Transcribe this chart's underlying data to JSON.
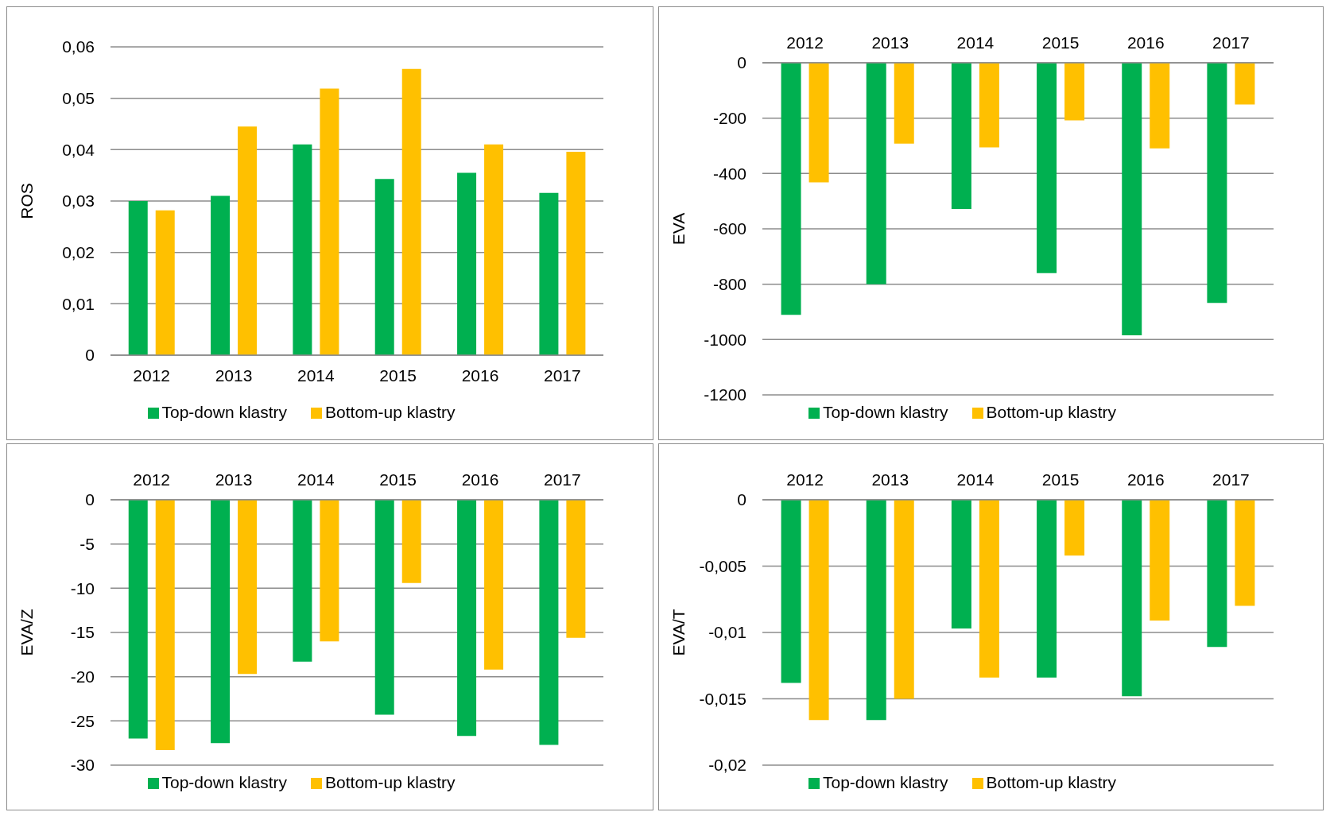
{
  "chart_data": [
    {
      "type": "bar",
      "ylabel": "ROS",
      "categories": [
        "2012",
        "2013",
        "2014",
        "2015",
        "2016",
        "2017"
      ],
      "series": [
        {
          "name": "Top-down klastry",
          "color": "#00b050",
          "values": [
            0.03,
            0.031,
            0.041,
            0.0343,
            0.0355,
            0.0316
          ]
        },
        {
          "name": "Bottom-up klastry",
          "color": "#ffc000",
          "values": [
            0.0282,
            0.0445,
            0.0519,
            0.0557,
            0.041,
            0.0396
          ]
        }
      ],
      "ylim": [
        0,
        0.06
      ],
      "yticks": [
        0,
        {
          "value": 0.01,
          "label": "0,01"
        },
        {
          "value": 0.02,
          "label": "0,02"
        },
        {
          "value": 0.03,
          "label": "0,03"
        },
        {
          "value": 0.04,
          "label": "0,04"
        },
        {
          "value": 0.05,
          "label": "0,05"
        },
        {
          "value": 0.06,
          "label": "0,06"
        }
      ],
      "grid": "y",
      "legend": "bottom"
    },
    {
      "type": "bar",
      "ylabel": "EVA",
      "categories": [
        "2012",
        "2013",
        "2014",
        "2015",
        "2016",
        "2017"
      ],
      "series": [
        {
          "name": "Top-down klastry",
          "color": "#00b050",
          "values": [
            -911,
            -800,
            -528,
            -760,
            -985,
            -868
          ]
        },
        {
          "name": "Bottom-up klastry",
          "color": "#ffc000",
          "values": [
            -432,
            -292,
            -306,
            -208,
            -309,
            -151
          ]
        }
      ],
      "ylim": [
        -1200,
        0
      ],
      "yticks": [
        -1200,
        -1000,
        -800,
        -600,
        -400,
        -200,
        0
      ],
      "grid": "y",
      "legend": "bottom"
    },
    {
      "type": "bar",
      "ylabel": "EVA/Z",
      "categories": [
        "2012",
        "2013",
        "2014",
        "2015",
        "2016",
        "2017"
      ],
      "series": [
        {
          "name": "Top-down klastry",
          "color": "#00b050",
          "values": [
            -27.0,
            -27.5,
            -18.3,
            -24.3,
            -26.7,
            -27.7
          ]
        },
        {
          "name": "Bottom-up klastry",
          "color": "#ffc000",
          "values": [
            -28.3,
            -19.7,
            -16.0,
            -9.4,
            -19.2,
            -15.6
          ]
        }
      ],
      "ylim": [
        -30,
        0
      ],
      "yticks": [
        -30,
        -25,
        -20,
        -15,
        -10,
        -5,
        0
      ],
      "grid": "y",
      "legend": "bottom"
    },
    {
      "type": "bar",
      "ylabel": "EVA/T",
      "categories": [
        "2012",
        "2013",
        "2014",
        "2015",
        "2016",
        "2017"
      ],
      "series": [
        {
          "name": "Top-down klastry",
          "color": "#00b050",
          "values": [
            -0.0138,
            -0.0166,
            -0.0097,
            -0.0134,
            -0.0148,
            -0.0111
          ]
        },
        {
          "name": "Bottom-up klastry",
          "color": "#ffc000",
          "values": [
            -0.0166,
            -0.015,
            -0.0134,
            -0.0042,
            -0.0091,
            -0.008
          ]
        }
      ],
      "ylim": [
        -0.02,
        0
      ],
      "yticks": [
        {
          "value": -0.02,
          "label": "-0,02"
        },
        {
          "value": -0.015,
          "label": "-0,015"
        },
        {
          "value": -0.01,
          "label": "-0,01"
        },
        {
          "value": -0.005,
          "label": "-0,005"
        },
        0
      ],
      "grid": "y",
      "legend": "bottom"
    }
  ]
}
